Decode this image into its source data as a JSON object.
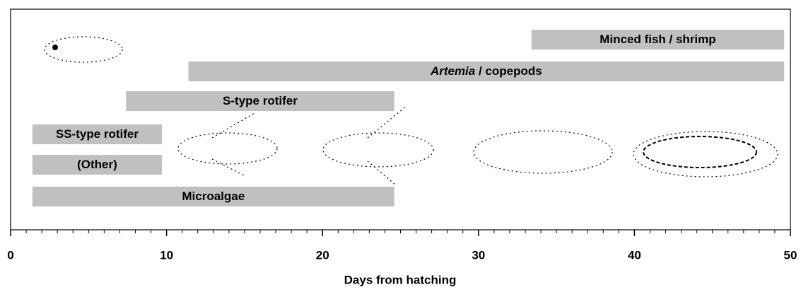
{
  "chart_data": {
    "type": "gantt",
    "x_label": "Days from hatching",
    "xlim": [
      0,
      50
    ],
    "xticks": [
      0,
      10,
      20,
      30,
      40,
      50
    ],
    "xminorticks": [
      1,
      2,
      3,
      4,
      5,
      6,
      7,
      8,
      9,
      11,
      12,
      13,
      14,
      15,
      16,
      17,
      18,
      19,
      21,
      22,
      23,
      24,
      25,
      26,
      27,
      28,
      29,
      31,
      32,
      33,
      34,
      35,
      36,
      37,
      38,
      39,
      41,
      42,
      43,
      44,
      45,
      46,
      47,
      48,
      49
    ],
    "color": "#c0c0c0",
    "tasks": [
      {
        "label": [
          {
            "text": "Minced fish / shrimp"
          }
        ],
        "start": 33.4,
        "end": 49.6
      },
      {
        "label": [
          {
            "text": "Artemia",
            "italic": true
          },
          {
            "text": " / copepods"
          }
        ],
        "start": 11.4,
        "end": 49.6
      },
      {
        "label": [
          {
            "text": "S-type rotifer"
          }
        ],
        "start": 7.4,
        "end": 24.6
      },
      {
        "label": [
          {
            "text": "SS-type rotifer"
          }
        ],
        "start": 1.4,
        "end": 9.7
      },
      {
        "label": [
          {
            "text": "(Other)"
          }
        ],
        "start": 1.4,
        "end": 9.7
      },
      {
        "label": [
          {
            "text": "Microalgae"
          }
        ],
        "start": 1.4,
        "end": 24.6
      }
    ]
  }
}
